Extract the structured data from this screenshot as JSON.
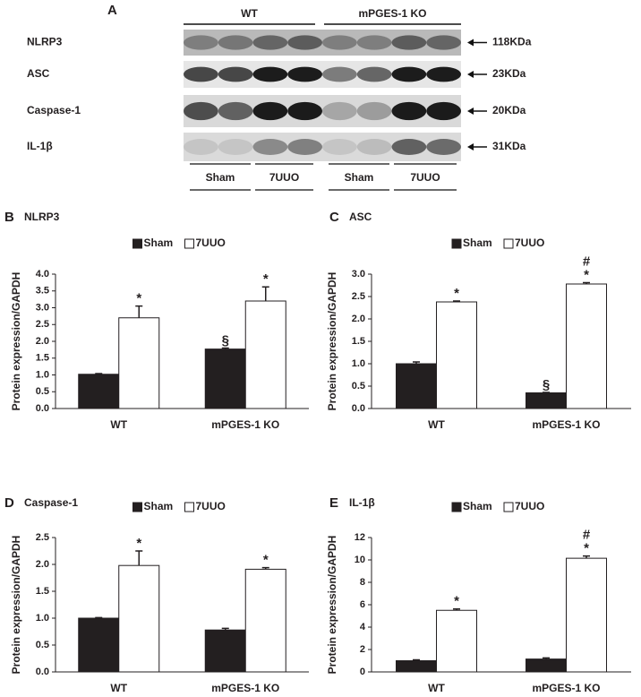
{
  "blot": {
    "panel": "A",
    "groups": [
      "WT",
      "mPGES-1 KO"
    ],
    "conditions": [
      "Sham",
      "7UUO",
      "Sham",
      "7UUO"
    ],
    "rows": [
      {
        "label": "NLRP3",
        "size": "118KDa"
      },
      {
        "label": "ASC",
        "size": "23KDa"
      },
      {
        "label": "Caspase-1",
        "size": "20KDa"
      },
      {
        "label": "IL-1β",
        "size": "31KDa"
      }
    ]
  },
  "chart_data": [
    {
      "type": "bar",
      "panel": "B",
      "title": "NLRP3",
      "ylabel": "Protein expression/GAPDH",
      "categories": [
        "WT",
        "mPGES-1 KO"
      ],
      "series": [
        {
          "name": "Sham",
          "color": "#231f20",
          "values": [
            1.02,
            1.77
          ],
          "errors": [
            0.02,
            0.03
          ],
          "annotations": [
            null,
            [
              "§"
            ]
          ]
        },
        {
          "name": "7UUO",
          "color": "#ffffff",
          "values": [
            2.7,
            3.2
          ],
          "errors": [
            0.35,
            0.42
          ],
          "annotations": [
            [
              "*"
            ],
            [
              "*"
            ]
          ]
        }
      ],
      "ylim": [
        0,
        4
      ],
      "yticks": [
        {
          "value": 0,
          "label": "0.0"
        },
        0.5,
        {
          "value": 1,
          "label": "1.0"
        },
        1.5,
        {
          "value": 2,
          "label": "2.0"
        },
        2.5,
        {
          "value": 3,
          "label": "3.0"
        },
        3.5,
        {
          "value": 4,
          "label": "4.0"
        }
      ],
      "legend": "top"
    },
    {
      "type": "bar",
      "panel": "C",
      "title": "ASC",
      "ylabel": "Protein expression/GAPDH",
      "categories": [
        "WT",
        "mPGES-1 KO"
      ],
      "series": [
        {
          "name": "Sham",
          "color": "#231f20",
          "values": [
            1.0,
            0.35
          ],
          "errors": [
            0.04,
            0.01
          ],
          "annotations": [
            null,
            [
              "§"
            ]
          ]
        },
        {
          "name": "7UUO",
          "color": "#ffffff",
          "values": [
            2.38,
            2.78
          ],
          "errors": [
            0.02,
            0.03
          ],
          "annotations": [
            [
              "*"
            ],
            [
              "*",
              "#"
            ]
          ]
        }
      ],
      "ylim": [
        0,
        3
      ],
      "yticks": [
        {
          "value": 0,
          "label": "0.0"
        },
        0.5,
        {
          "value": 1,
          "label": "1.0"
        },
        1.5,
        {
          "value": 2,
          "label": "2.0"
        },
        2.5,
        {
          "value": 3,
          "label": "3.0"
        }
      ],
      "legend": "top"
    },
    {
      "type": "bar",
      "panel": "D",
      "title": "Caspase-1",
      "ylabel": "Protein expression/GAPDH",
      "categories": [
        "WT",
        "mPGES-1 KO"
      ],
      "series": [
        {
          "name": "Sham",
          "color": "#231f20",
          "values": [
            1.0,
            0.78
          ],
          "errors": [
            0.01,
            0.03
          ],
          "annotations": [
            null,
            null
          ]
        },
        {
          "name": "7UUO",
          "color": "#ffffff",
          "values": [
            1.98,
            1.91
          ],
          "errors": [
            0.27,
            0.03
          ],
          "annotations": [
            [
              "*"
            ],
            [
              "*"
            ]
          ]
        }
      ],
      "ylim": [
        0,
        2.5
      ],
      "yticks": [
        {
          "value": 0,
          "label": "0.0"
        },
        0.5,
        {
          "value": 1,
          "label": "1.0"
        },
        1.5,
        {
          "value": 2,
          "label": "2.0"
        },
        2.5
      ],
      "legend": "top"
    },
    {
      "type": "bar",
      "panel": "E",
      "title": "IL-1β",
      "ylabel": "Protein expression/GAPDH",
      "categories": [
        "WT",
        "mPGES-1 KO"
      ],
      "series": [
        {
          "name": "Sham",
          "color": "#231f20",
          "values": [
            1.0,
            1.15
          ],
          "errors": [
            0.08,
            0.1
          ],
          "annotations": [
            null,
            null
          ]
        },
        {
          "name": "7UUO",
          "color": "#ffffff",
          "values": [
            5.5,
            10.15
          ],
          "errors": [
            0.12,
            0.2
          ],
          "annotations": [
            [
              "*"
            ],
            [
              "*",
              "#"
            ]
          ]
        }
      ],
      "ylim": [
        0,
        12
      ],
      "yticks": [
        0,
        2,
        4,
        6,
        8,
        10,
        12
      ],
      "legend": "top"
    }
  ]
}
